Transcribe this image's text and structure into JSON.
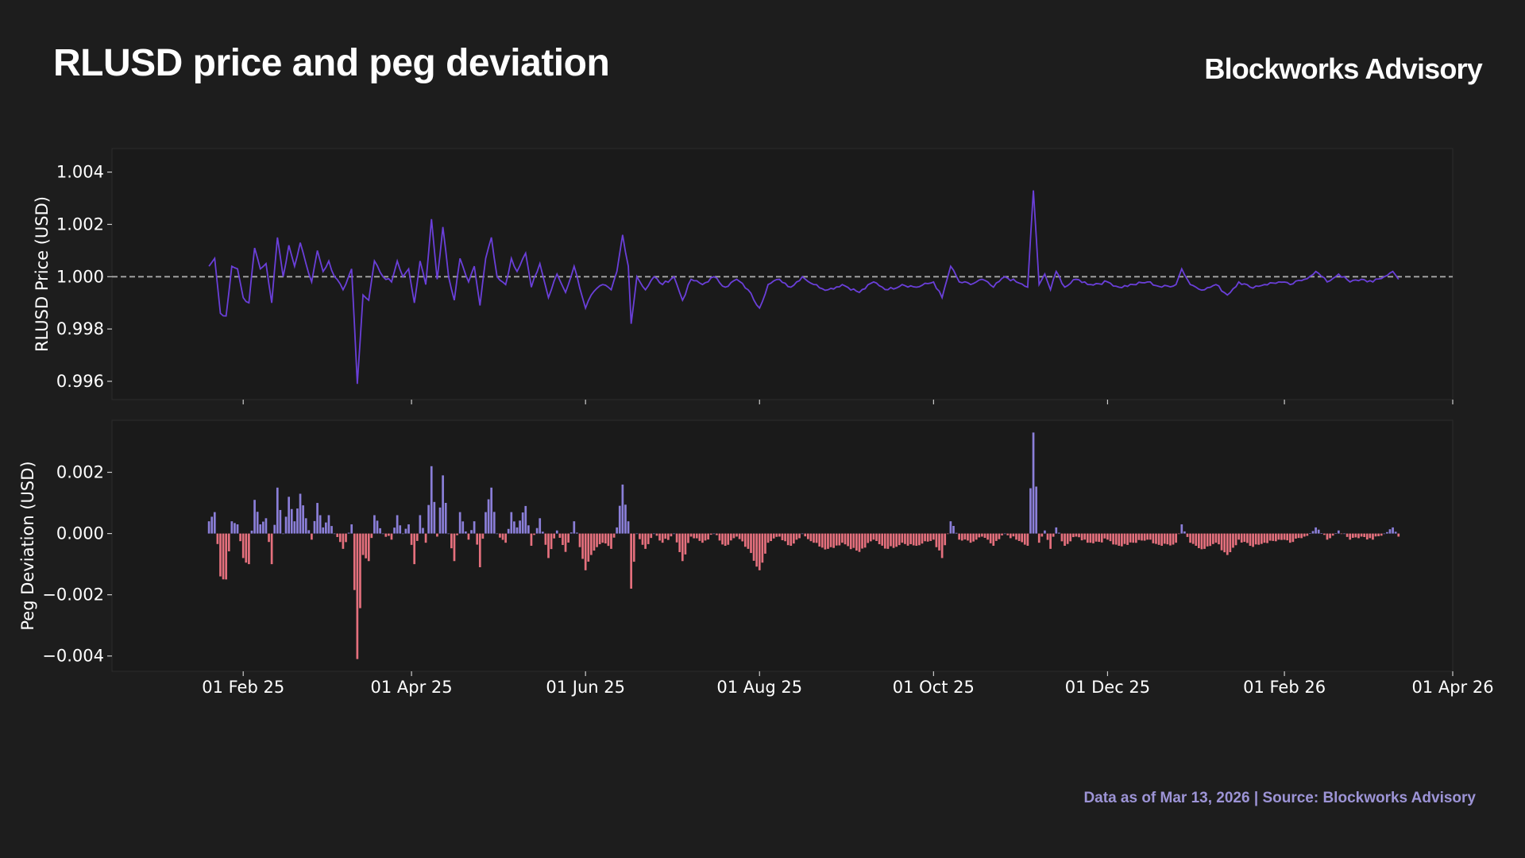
{
  "header": {
    "title": "RLUSD price and peg deviation",
    "brand": "Blockworks Advisory"
  },
  "footer": {
    "note": "Data as of Mar 13, 2026 | Source: Blockworks Advisory"
  },
  "colors": {
    "background": "#1d1d1d",
    "panel": "#1a1a1a",
    "price_line": "#6a3fd9",
    "peg_line": "#a8a8a8",
    "positive_bar": "#8b7fd9",
    "negative_bar": "#e5707d",
    "footer_text": "#9d94d6"
  },
  "chart_data": [
    {
      "type": "line",
      "ylabel": "RLUSD Price (USD)",
      "ylim": [
        0.9953,
        1.0049
      ],
      "yticks": [
        0.996,
        0.998,
        1.0,
        1.002,
        1.004
      ],
      "ytick_labels": [
        "0.996",
        "0.998",
        "1.000",
        "1.002",
        "1.004"
      ],
      "reference_line": 1.0,
      "reference_style": "dashed",
      "x_start": "2025-01-20",
      "x_end": "2026-03-13",
      "xlim": [
        "2024-12-17",
        "2026-04-01"
      ],
      "xticks": [
        "2025-02-01",
        "2025-04-01",
        "2025-06-01",
        "2025-08-01",
        "2025-10-01",
        "2025-12-01",
        "2026-02-01",
        "2026-04-01"
      ],
      "grid": false,
      "series_color": "price_line",
      "anchors": [
        [
          "2025-01-20",
          1.0004
        ],
        [
          "2025-01-22",
          1.0007
        ],
        [
          "2025-01-24",
          0.9986
        ],
        [
          "2025-01-26",
          0.9985
        ],
        [
          "2025-01-28",
          1.0004
        ],
        [
          "2025-01-30",
          1.0003
        ],
        [
          "2025-02-01",
          0.9992
        ],
        [
          "2025-02-03",
          0.999
        ],
        [
          "2025-02-05",
          1.0011
        ],
        [
          "2025-02-07",
          1.0003
        ],
        [
          "2025-02-09",
          1.0005
        ],
        [
          "2025-02-11",
          0.999
        ],
        [
          "2025-02-13",
          1.0015
        ],
        [
          "2025-02-15",
          1.0
        ],
        [
          "2025-02-17",
          1.0012
        ],
        [
          "2025-02-19",
          1.0004
        ],
        [
          "2025-02-21",
          1.0013
        ],
        [
          "2025-02-23",
          1.0005
        ],
        [
          "2025-02-25",
          0.9998
        ],
        [
          "2025-02-27",
          1.001
        ],
        [
          "2025-03-01",
          1.0002
        ],
        [
          "2025-03-03",
          1.0006
        ],
        [
          "2025-03-05",
          1.0
        ],
        [
          "2025-03-08",
          0.9995
        ],
        [
          "2025-03-11",
          1.0003
        ],
        [
          "2025-03-13",
          0.9959
        ],
        [
          "2025-03-15",
          0.9993
        ],
        [
          "2025-03-17",
          0.9991
        ],
        [
          "2025-03-19",
          1.0006
        ],
        [
          "2025-03-22",
          1.0
        ],
        [
          "2025-03-25",
          0.9998
        ],
        [
          "2025-03-27",
          1.0006
        ],
        [
          "2025-03-29",
          1.0
        ],
        [
          "2025-03-31",
          1.0003
        ],
        [
          "2025-04-02",
          0.999
        ],
        [
          "2025-04-04",
          1.0006
        ],
        [
          "2025-04-06",
          0.9997
        ],
        [
          "2025-04-08",
          1.0022
        ],
        [
          "2025-04-10",
          0.9999
        ],
        [
          "2025-04-12",
          1.0019
        ],
        [
          "2025-04-14",
          1.0
        ],
        [
          "2025-04-16",
          0.9991
        ],
        [
          "2025-04-18",
          1.0007
        ],
        [
          "2025-04-21",
          0.9998
        ],
        [
          "2025-04-23",
          1.0004
        ],
        [
          "2025-04-25",
          0.9989
        ],
        [
          "2025-04-27",
          1.0007
        ],
        [
          "2025-04-29",
          1.0015
        ],
        [
          "2025-05-01",
          1.0
        ],
        [
          "2025-05-04",
          0.9997
        ],
        [
          "2025-05-06",
          1.0007
        ],
        [
          "2025-05-08",
          1.0002
        ],
        [
          "2025-05-11",
          1.0009
        ],
        [
          "2025-05-13",
          0.9996
        ],
        [
          "2025-05-16",
          1.0005
        ],
        [
          "2025-05-19",
          0.9992
        ],
        [
          "2025-05-22",
          1.0001
        ],
        [
          "2025-05-25",
          0.9994
        ],
        [
          "2025-05-28",
          1.0004
        ],
        [
          "2025-06-01",
          0.9988
        ],
        [
          "2025-06-03",
          0.9993
        ],
        [
          "2025-06-07",
          0.9997
        ],
        [
          "2025-06-10",
          0.9995
        ],
        [
          "2025-06-12",
          1.0002
        ],
        [
          "2025-06-14",
          1.0016
        ],
        [
          "2025-06-16",
          1.0004
        ],
        [
          "2025-06-17",
          0.9982
        ],
        [
          "2025-06-19",
          1.0
        ],
        [
          "2025-06-22",
          0.9995
        ],
        [
          "2025-06-25",
          1.0
        ],
        [
          "2025-06-28",
          0.9997
        ],
        [
          "2025-07-02",
          1.0
        ],
        [
          "2025-07-05",
          0.9991
        ],
        [
          "2025-07-08",
          0.9999
        ],
        [
          "2025-07-12",
          0.9997
        ],
        [
          "2025-07-16",
          1.0
        ],
        [
          "2025-07-20",
          0.9996
        ],
        [
          "2025-07-24",
          0.9999
        ],
        [
          "2025-07-28",
          0.9995
        ],
        [
          "2025-08-01",
          0.9988
        ],
        [
          "2025-08-04",
          0.9997
        ],
        [
          "2025-08-08",
          0.9999
        ],
        [
          "2025-08-12",
          0.9996
        ],
        [
          "2025-08-16",
          1.0
        ],
        [
          "2025-08-20",
          0.9997
        ],
        [
          "2025-08-25",
          0.9995
        ],
        [
          "2025-08-30",
          0.9997
        ],
        [
          "2025-09-05",
          0.9994
        ],
        [
          "2025-09-10",
          0.9998
        ],
        [
          "2025-09-15",
          0.9995
        ],
        [
          "2025-09-20",
          0.9997
        ],
        [
          "2025-09-25",
          0.9996
        ],
        [
          "2025-10-01",
          0.9998
        ],
        [
          "2025-10-04",
          0.9992
        ],
        [
          "2025-10-07",
          1.0004
        ],
        [
          "2025-10-10",
          0.9998
        ],
        [
          "2025-10-14",
          0.9997
        ],
        [
          "2025-10-18",
          0.9999
        ],
        [
          "2025-10-22",
          0.9996
        ],
        [
          "2025-10-26",
          1.0
        ],
        [
          "2025-10-30",
          0.9998
        ],
        [
          "2025-11-03",
          0.9996
        ],
        [
          "2025-11-05",
          1.0033
        ],
        [
          "2025-11-07",
          0.9997
        ],
        [
          "2025-11-09",
          1.0001
        ],
        [
          "2025-11-11",
          0.9995
        ],
        [
          "2025-11-13",
          1.0002
        ],
        [
          "2025-11-16",
          0.9996
        ],
        [
          "2025-11-20",
          0.9999
        ],
        [
          "2025-11-25",
          0.9997
        ],
        [
          "2025-12-01",
          0.9998
        ],
        [
          "2025-12-05",
          0.9996
        ],
        [
          "2025-12-10",
          0.9997
        ],
        [
          "2025-12-15",
          0.9998
        ],
        [
          "2025-12-20",
          0.9996
        ],
        [
          "2025-12-25",
          0.9997
        ],
        [
          "2025-12-27",
          1.0003
        ],
        [
          "2025-12-30",
          0.9997
        ],
        [
          "2026-01-04",
          0.9995
        ],
        [
          "2026-01-08",
          0.9997
        ],
        [
          "2026-01-12",
          0.9993
        ],
        [
          "2026-01-16",
          0.9998
        ],
        [
          "2026-01-20",
          0.9996
        ],
        [
          "2026-01-25",
          0.9997
        ],
        [
          "2026-01-30",
          0.9998
        ],
        [
          "2026-02-03",
          0.9997
        ],
        [
          "2026-02-08",
          0.9999
        ],
        [
          "2026-02-12",
          1.0002
        ],
        [
          "2026-02-16",
          0.9998
        ],
        [
          "2026-02-20",
          1.0001
        ],
        [
          "2026-02-24",
          0.9998
        ],
        [
          "2026-02-28",
          0.9999
        ],
        [
          "2026-03-04",
          0.9998
        ],
        [
          "2026-03-08",
          1.0
        ],
        [
          "2026-03-11",
          1.0002
        ],
        [
          "2026-03-13",
          0.9999
        ]
      ]
    },
    {
      "type": "bar",
      "ylabel": "Peg Deviation (USD)",
      "ylim": [
        -0.0045,
        0.0037
      ],
      "yticks": [
        -0.004,
        -0.002,
        0.0,
        0.002
      ],
      "ytick_labels": [
        "−0.004",
        "−0.002",
        "0.000",
        "0.002"
      ],
      "xlim": [
        "2024-12-17",
        "2026-04-01"
      ],
      "xticks": [
        "2025-02-01",
        "2025-04-01",
        "2025-06-01",
        "2025-08-01",
        "2025-10-01",
        "2025-12-01",
        "2026-02-01",
        "2026-04-01"
      ],
      "xtick_labels": [
        "01 Feb 25",
        "01 Apr 25",
        "01 Jun 25",
        "01 Aug 25",
        "01 Oct 25",
        "01 Dec 25",
        "01 Feb 26",
        "01 Apr 26"
      ],
      "grid": false,
      "values_definition": "price - 1.000",
      "positive_color": "positive_bar",
      "negative_color": "negative_bar"
    }
  ]
}
